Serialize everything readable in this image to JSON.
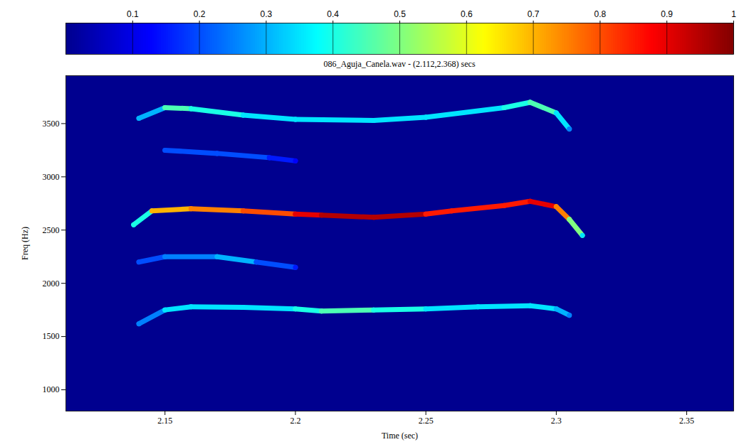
{
  "chart_data": {
    "type": "spectrogram",
    "title": "086_Aguja_Canela.wav - (2.112,2.368) secs",
    "x_label": "Time (sec)",
    "y_label": "Freq (Hz)",
    "xlim": [
      2.112,
      2.368
    ],
    "xticks": [
      2.15,
      2.2,
      2.25,
      2.3,
      2.35
    ],
    "ylim": [
      800,
      3950
    ],
    "yticks": [
      1000,
      1500,
      2000,
      2500,
      3000,
      3500
    ],
    "colorbar": {
      "range": [
        0,
        1
      ],
      "ticks": [
        0.1,
        0.2,
        0.3,
        0.4,
        0.5,
        0.6,
        0.7,
        0.8,
        0.9,
        1
      ]
    },
    "tracks": [
      {
        "x": [
          2.14,
          2.15,
          2.16,
          2.18,
          2.2,
          2.21,
          2.23,
          2.25,
          2.27,
          2.29,
          2.3,
          2.305
        ],
        "y": [
          1620,
          1750,
          1780,
          1775,
          1760,
          1740,
          1750,
          1760,
          1780,
          1790,
          1760,
          1700
        ],
        "intensity": [
          0.25,
          0.35,
          0.35,
          0.35,
          0.4,
          0.45,
          0.4,
          0.35,
          0.35,
          0.35,
          0.3,
          0.25
        ]
      },
      {
        "x": [
          2.138,
          2.145,
          2.16,
          2.18,
          2.2,
          2.21,
          2.23,
          2.25,
          2.26,
          2.28,
          2.29,
          2.3,
          2.305,
          2.31
        ],
        "y": [
          2550,
          2680,
          2700,
          2680,
          2650,
          2640,
          2620,
          2650,
          2680,
          2730,
          2770,
          2720,
          2600,
          2450
        ],
        "intensity": [
          0.4,
          0.7,
          0.75,
          0.8,
          0.9,
          0.95,
          0.95,
          0.85,
          0.85,
          0.85,
          0.9,
          0.75,
          0.5,
          0.35
        ]
      },
      {
        "x": [
          2.14,
          2.15,
          2.16,
          2.18,
          2.2,
          2.23,
          2.25,
          2.28,
          2.29,
          2.3,
          2.305
        ],
        "y": [
          3550,
          3650,
          3640,
          3580,
          3540,
          3530,
          3560,
          3650,
          3700,
          3600,
          3450
        ],
        "intensity": [
          0.3,
          0.45,
          0.4,
          0.35,
          0.35,
          0.35,
          0.35,
          0.4,
          0.45,
          0.35,
          0.25
        ]
      },
      {
        "x": [
          2.15,
          2.17,
          2.19,
          2.2
        ],
        "y": [
          3250,
          3220,
          3180,
          3150
        ],
        "intensity": [
          0.2,
          0.2,
          0.15,
          0.12
        ]
      },
      {
        "x": [
          2.14,
          2.15,
          2.17,
          2.185,
          2.2
        ],
        "y": [
          2200,
          2250,
          2250,
          2200,
          2150
        ],
        "intensity": [
          0.2,
          0.25,
          0.3,
          0.2,
          0.15
        ]
      }
    ]
  }
}
